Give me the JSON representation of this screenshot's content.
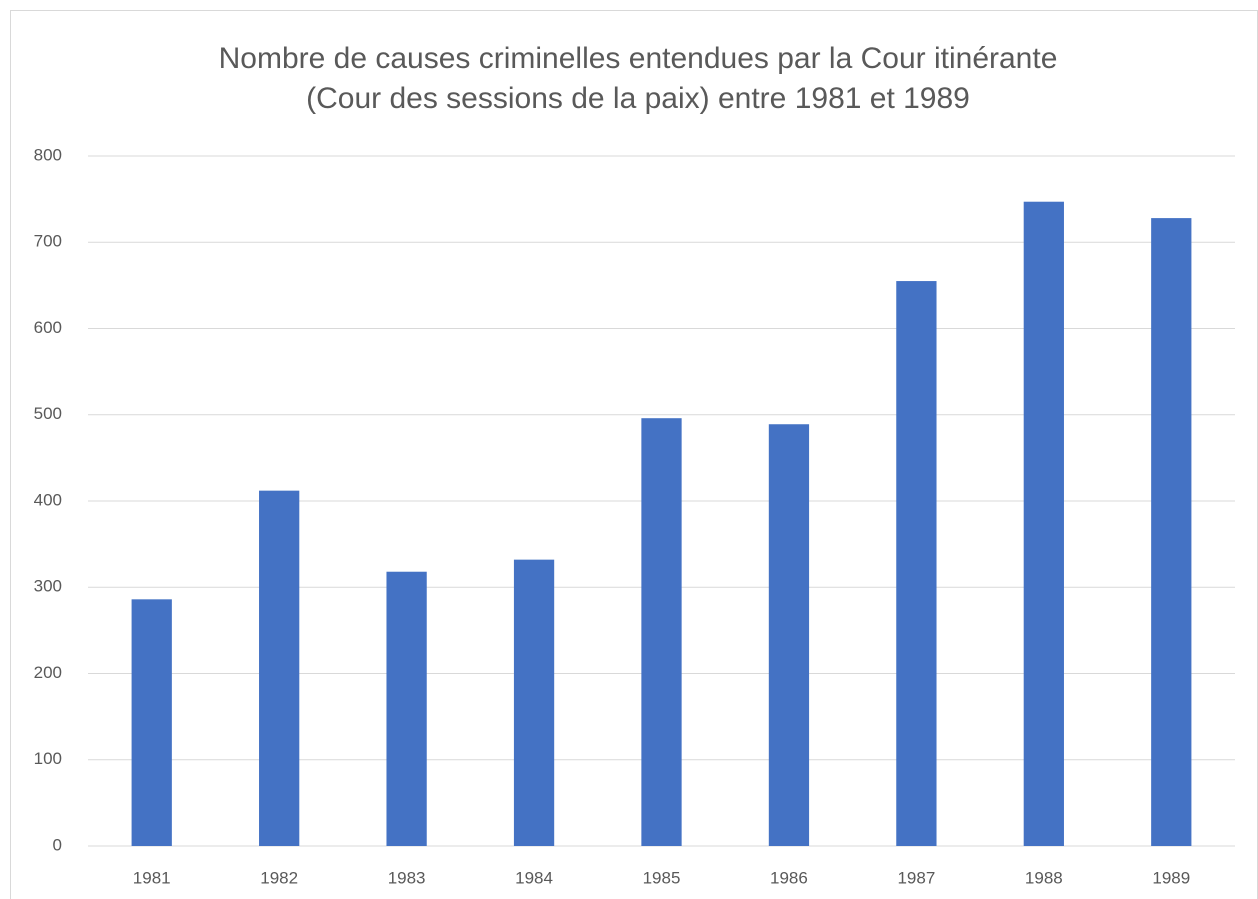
{
  "chart_data": {
    "type": "bar",
    "title": [
      "Nombre de causes criminelles entendues par la Cour itinérante",
      "(Cour des sessions de la paix) entre 1981 et 1989"
    ],
    "categories": [
      "1981",
      "1982",
      "1983",
      "1984",
      "1985",
      "1986",
      "1987",
      "1988",
      "1989"
    ],
    "values": [
      286,
      412,
      318,
      332,
      496,
      489,
      655,
      747,
      728
    ],
    "color": "#4472c4",
    "ylim": [
      0,
      800
    ],
    "yticks": [
      0,
      100,
      200,
      300,
      400,
      500,
      600,
      700,
      800
    ],
    "grid": true
  }
}
